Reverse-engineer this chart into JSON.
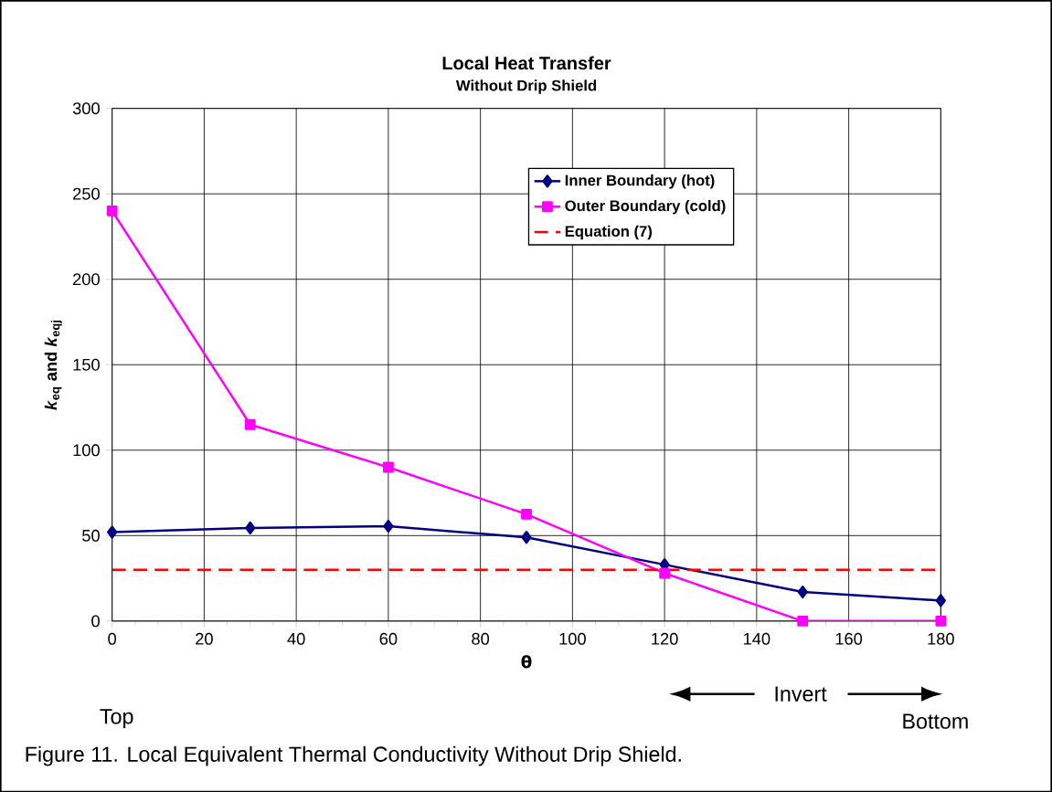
{
  "chart_data": {
    "type": "line",
    "title": "Local Heat Transfer",
    "subtitle": "Without Drip Shield",
    "xlabel": "θ",
    "ylabel": "*k*$_{eq}$ and *k*$_{eqj}$",
    "xlim": [
      0,
      180
    ],
    "xticks": [
      0,
      20,
      40,
      60,
      80,
      100,
      120,
      140,
      160,
      180
    ],
    "ylim": [
      0,
      300
    ],
    "yticks": [
      0,
      50,
      100,
      150,
      200,
      250,
      300
    ],
    "grid": true,
    "legend": "top right",
    "series": [
      {
        "name": "Inner Boundary (hot)",
        "color": "#000080",
        "marker": "diamond",
        "line_style": "solid",
        "x": [
          0,
          30,
          60,
          90,
          120,
          150,
          180
        ],
        "values": [
          52,
          54.5,
          55.5,
          49,
          33,
          17,
          12
        ]
      },
      {
        "name": "Outer Boundary (cold)",
        "color": "#ff00ff",
        "marker": "square",
        "line_style": "solid",
        "x": [
          0,
          30,
          60,
          90,
          120,
          150,
          180
        ],
        "values": [
          240,
          115,
          90,
          62.5,
          28,
          0,
          0
        ]
      },
      {
        "name": "Equation (7)",
        "color": "#ff0000",
        "marker": "none",
        "line_style": "dashed",
        "x": [
          0,
          180
        ],
        "values": [
          30,
          30
        ]
      }
    ],
    "annotations": [
      "Top",
      "Invert",
      "Bottom",
      "Figure 11. Local Equivalent Thermal Conductivity Without Drip Shield."
    ]
  }
}
